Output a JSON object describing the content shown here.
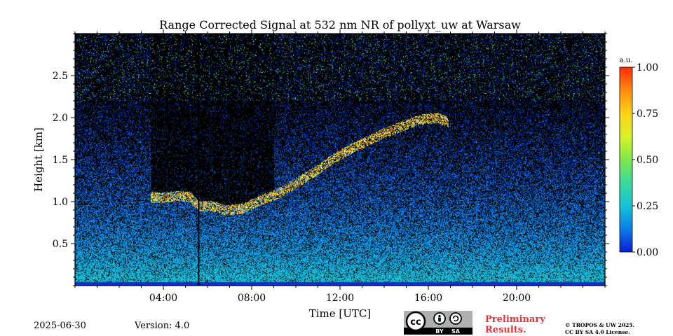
{
  "chart_data": {
    "type": "heatmap",
    "title": "Range Corrected Signal at 532 nm NR of pollyxt_uw at Warsaw",
    "xlabel": "Time [UTC]",
    "ylabel": "Height [km]",
    "xlim": [
      0,
      24
    ],
    "ylim": [
      0,
      3.0
    ],
    "x_ticks": [
      {
        "value": 4,
        "label": "04:00"
      },
      {
        "value": 8,
        "label": "08:00"
      },
      {
        "value": 12,
        "label": "12:00"
      },
      {
        "value": 16,
        "label": "16:00"
      },
      {
        "value": 20,
        "label": "20:00"
      }
    ],
    "x_minor_step": 1,
    "y_ticks": [
      {
        "value": 0.5,
        "label": "0.5"
      },
      {
        "value": 1.0,
        "label": "1.0"
      },
      {
        "value": 1.5,
        "label": "1.5"
      },
      {
        "value": 2.0,
        "label": "2.0"
      },
      {
        "value": 2.5,
        "label": "2.5"
      }
    ],
    "y_minor_step": 0.1,
    "colorbar": {
      "unit": "a.u.",
      "range": [
        0,
        1
      ],
      "ticks": [
        {
          "value": 0.0,
          "label": "0.00"
        },
        {
          "value": 0.25,
          "label": "0.25"
        },
        {
          "value": 0.5,
          "label": "0.50"
        },
        {
          "value": 0.75,
          "label": "0.75"
        },
        {
          "value": 1.0,
          "label": "1.00"
        }
      ],
      "colormap": [
        "#0a1fd0",
        "#0b7de8",
        "#16c3d6",
        "#3ad99a",
        "#7fe84a",
        "#d8f22a",
        "#ffd21a",
        "#ff8a10",
        "#ff2a08"
      ]
    },
    "features": {
      "missing_data_line_time": 5.6,
      "cloud_layer": [
        {
          "time": 3.4,
          "height": 1.05
        },
        {
          "time": 4.0,
          "height": 1.05
        },
        {
          "time": 4.6,
          "height": 1.07
        },
        {
          "time": 5.2,
          "height": 1.06
        },
        {
          "time": 5.6,
          "height": 0.95
        },
        {
          "time": 6.2,
          "height": 0.95
        },
        {
          "time": 6.8,
          "height": 0.9
        },
        {
          "time": 7.6,
          "height": 0.92
        },
        {
          "time": 8.4,
          "height": 1.02
        },
        {
          "time": 9.2,
          "height": 1.1
        },
        {
          "time": 10.0,
          "height": 1.22
        },
        {
          "time": 10.8,
          "height": 1.35
        },
        {
          "time": 11.6,
          "height": 1.5
        },
        {
          "time": 12.4,
          "height": 1.62
        },
        {
          "time": 13.2,
          "height": 1.72
        },
        {
          "time": 14.0,
          "height": 1.82
        },
        {
          "time": 14.8,
          "height": 1.9
        },
        {
          "time": 15.6,
          "height": 1.98
        },
        {
          "time": 16.4,
          "height": 2.0
        },
        {
          "time": 16.9,
          "height": 1.95
        }
      ]
    }
  },
  "footer": {
    "date": "2025-06-30",
    "version": "Version: 4.0",
    "preliminary_line1": "Preliminary",
    "preliminary_line2": "Results.",
    "copyright_line1": "© TROPOS & UW 2025.",
    "copyright_line2": "CC BY SA 4.0 License.",
    "license_badge": {
      "cc": "cc",
      "by": "BY",
      "sa": "SA"
    }
  }
}
